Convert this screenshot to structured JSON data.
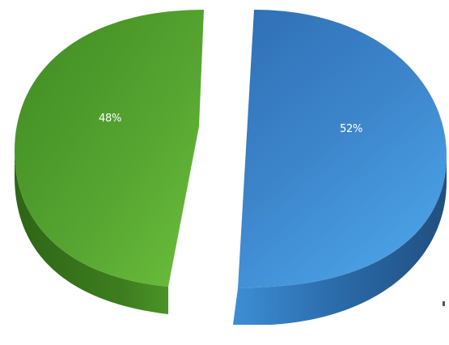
{
  "chart_data": {
    "type": "pie",
    "style": "3d-exploded",
    "title": "",
    "slices": [
      {
        "label": "48%",
        "value": 48,
        "color": "#4e9c2a",
        "side_color": "#2f6b1a"
      },
      {
        "label": "52%",
        "value": 52,
        "color": "#3f86c8",
        "side_color": "#2b5f96"
      }
    ],
    "legend": "none",
    "grid": false
  }
}
